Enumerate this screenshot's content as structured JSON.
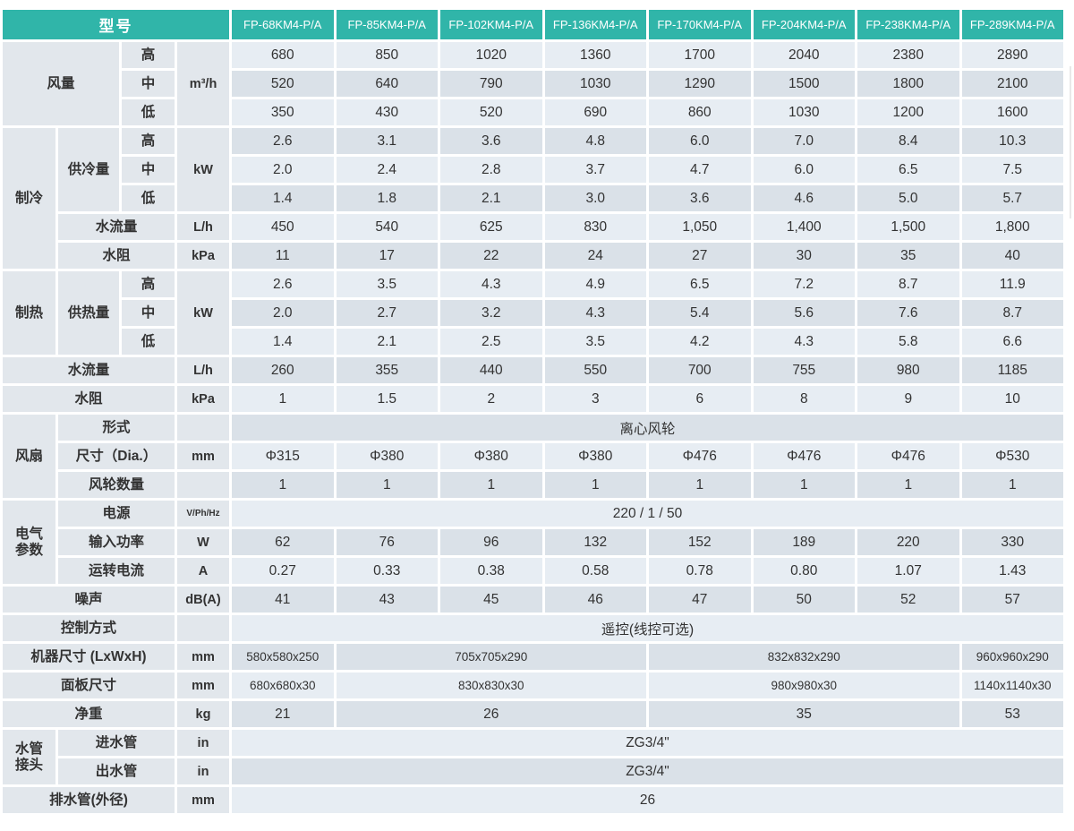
{
  "colors": {
    "header_teal": "#30b5a9",
    "row_light": "#e7edf3",
    "row_dark": "#dae1e8",
    "label_bg": "#e2e7ec",
    "text": "#333333"
  },
  "table": {
    "header": {
      "model_label": "型号",
      "models": [
        "FP-68KM4-P/A",
        "FP-85KM4-P/A",
        "FP-102KM4-P/A",
        "FP-136KM4-P/A",
        "FP-170KM4-P/A",
        "FP-204KM4-P/A",
        "FP-238KM4-P/A",
        "FP-289KM4-P/A"
      ]
    },
    "body": [
      {
        "cells": [
          {
            "t": "风量",
            "k": "lab",
            "cs": 2,
            "rs": 3,
            "n": "section-airflow"
          },
          {
            "t": "高",
            "k": "lab"
          },
          {
            "t": "m³/h",
            "k": "unit",
            "rs": 3
          },
          {
            "t": "680",
            "k": "val"
          },
          {
            "t": "850",
            "k": "val"
          },
          {
            "t": "1020",
            "k": "val"
          },
          {
            "t": "1360",
            "k": "val"
          },
          {
            "t": "1700",
            "k": "val"
          },
          {
            "t": "2040",
            "k": "val"
          },
          {
            "t": "2380",
            "k": "val"
          },
          {
            "t": "2890",
            "k": "val"
          }
        ]
      },
      {
        "cells": [
          {
            "t": "中",
            "k": "lab"
          },
          {
            "t": "520",
            "k": "val"
          },
          {
            "t": "640",
            "k": "val"
          },
          {
            "t": "790",
            "k": "val"
          },
          {
            "t": "1030",
            "k": "val"
          },
          {
            "t": "1290",
            "k": "val"
          },
          {
            "t": "1500",
            "k": "val"
          },
          {
            "t": "1800",
            "k": "val"
          },
          {
            "t": "2100",
            "k": "val"
          }
        ]
      },
      {
        "cells": [
          {
            "t": "低",
            "k": "lab"
          },
          {
            "t": "350",
            "k": "val"
          },
          {
            "t": "430",
            "k": "val"
          },
          {
            "t": "520",
            "k": "val"
          },
          {
            "t": "690",
            "k": "val"
          },
          {
            "t": "860",
            "k": "val"
          },
          {
            "t": "1030",
            "k": "val"
          },
          {
            "t": "1200",
            "k": "val"
          },
          {
            "t": "1600",
            "k": "val"
          }
        ]
      },
      {
        "cells": [
          {
            "t": "制冷",
            "k": "lab",
            "rs": 5,
            "n": "section-cooling"
          },
          {
            "t": "供冷量",
            "k": "lab",
            "rs": 3
          },
          {
            "t": "高",
            "k": "lab"
          },
          {
            "t": "kW",
            "k": "unit",
            "rs": 3
          },
          {
            "t": "2.6",
            "k": "val"
          },
          {
            "t": "3.1",
            "k": "val"
          },
          {
            "t": "3.6",
            "k": "val"
          },
          {
            "t": "4.8",
            "k": "val"
          },
          {
            "t": "6.0",
            "k": "val"
          },
          {
            "t": "7.0",
            "k": "val"
          },
          {
            "t": "8.4",
            "k": "val"
          },
          {
            "t": "10.3",
            "k": "val"
          }
        ]
      },
      {
        "cells": [
          {
            "t": "中",
            "k": "lab"
          },
          {
            "t": "2.0",
            "k": "val"
          },
          {
            "t": "2.4",
            "k": "val"
          },
          {
            "t": "2.8",
            "k": "val"
          },
          {
            "t": "3.7",
            "k": "val"
          },
          {
            "t": "4.7",
            "k": "val"
          },
          {
            "t": "6.0",
            "k": "val"
          },
          {
            "t": "6.5",
            "k": "val"
          },
          {
            "t": "7.5",
            "k": "val"
          }
        ]
      },
      {
        "cells": [
          {
            "t": "低",
            "k": "lab"
          },
          {
            "t": "1.4",
            "k": "val"
          },
          {
            "t": "1.8",
            "k": "val"
          },
          {
            "t": "2.1",
            "k": "val"
          },
          {
            "t": "3.0",
            "k": "val"
          },
          {
            "t": "3.6",
            "k": "val"
          },
          {
            "t": "4.6",
            "k": "val"
          },
          {
            "t": "5.0",
            "k": "val"
          },
          {
            "t": "5.7",
            "k": "val"
          }
        ]
      },
      {
        "cells": [
          {
            "t": "水流量",
            "k": "lab",
            "cs": 2
          },
          {
            "t": "L/h",
            "k": "unit"
          },
          {
            "t": "450",
            "k": "val"
          },
          {
            "t": "540",
            "k": "val"
          },
          {
            "t": "625",
            "k": "val"
          },
          {
            "t": "830",
            "k": "val"
          },
          {
            "t": "1,050",
            "k": "val"
          },
          {
            "t": "1,400",
            "k": "val"
          },
          {
            "t": "1,500",
            "k": "val"
          },
          {
            "t": "1,800",
            "k": "val"
          }
        ]
      },
      {
        "cells": [
          {
            "t": "水阻",
            "k": "lab",
            "cs": 2
          },
          {
            "t": "kPa",
            "k": "unit"
          },
          {
            "t": "11",
            "k": "val"
          },
          {
            "t": "17",
            "k": "val"
          },
          {
            "t": "22",
            "k": "val"
          },
          {
            "t": "24",
            "k": "val"
          },
          {
            "t": "27",
            "k": "val"
          },
          {
            "t": "30",
            "k": "val"
          },
          {
            "t": "35",
            "k": "val"
          },
          {
            "t": "40",
            "k": "val"
          }
        ]
      },
      {
        "cells": [
          {
            "t": "制热",
            "k": "lab",
            "rs": 3,
            "n": "section-heating"
          },
          {
            "t": "供热量",
            "k": "lab",
            "rs": 3
          },
          {
            "t": "高",
            "k": "lab"
          },
          {
            "t": "kW",
            "k": "unit",
            "rs": 3
          },
          {
            "t": "2.6",
            "k": "val"
          },
          {
            "t": "3.5",
            "k": "val"
          },
          {
            "t": "4.3",
            "k": "val"
          },
          {
            "t": "4.9",
            "k": "val"
          },
          {
            "t": "6.5",
            "k": "val"
          },
          {
            "t": "7.2",
            "k": "val"
          },
          {
            "t": "8.7",
            "k": "val"
          },
          {
            "t": "11.9",
            "k": "val"
          }
        ]
      },
      {
        "cells": [
          {
            "t": "中",
            "k": "lab"
          },
          {
            "t": "2.0",
            "k": "val"
          },
          {
            "t": "2.7",
            "k": "val"
          },
          {
            "t": "3.2",
            "k": "val"
          },
          {
            "t": "4.3",
            "k": "val"
          },
          {
            "t": "5.4",
            "k": "val"
          },
          {
            "t": "5.6",
            "k": "val"
          },
          {
            "t": "7.6",
            "k": "val"
          },
          {
            "t": "8.7",
            "k": "val"
          }
        ]
      },
      {
        "cells": [
          {
            "t": "低",
            "k": "lab"
          },
          {
            "t": "1.4",
            "k": "val"
          },
          {
            "t": "2.1",
            "k": "val"
          },
          {
            "t": "2.5",
            "k": "val"
          },
          {
            "t": "3.5",
            "k": "val"
          },
          {
            "t": "4.2",
            "k": "val"
          },
          {
            "t": "4.3",
            "k": "val"
          },
          {
            "t": "5.8",
            "k": "val"
          },
          {
            "t": "6.6",
            "k": "val"
          }
        ]
      },
      {
        "cells": [
          {
            "t": "水流量",
            "k": "lab",
            "cs": 3
          },
          {
            "t": "L/h",
            "k": "unit"
          },
          {
            "t": "260",
            "k": "val"
          },
          {
            "t": "355",
            "k": "val"
          },
          {
            "t": "440",
            "k": "val"
          },
          {
            "t": "550",
            "k": "val"
          },
          {
            "t": "700",
            "k": "val"
          },
          {
            "t": "755",
            "k": "val"
          },
          {
            "t": "980",
            "k": "val"
          },
          {
            "t": "1185",
            "k": "val"
          }
        ]
      },
      {
        "cells": [
          {
            "t": "水阻",
            "k": "lab",
            "cs": 3
          },
          {
            "t": "kPa",
            "k": "unit"
          },
          {
            "t": "1",
            "k": "val"
          },
          {
            "t": "1.5",
            "k": "val"
          },
          {
            "t": "2",
            "k": "val"
          },
          {
            "t": "3",
            "k": "val"
          },
          {
            "t": "6",
            "k": "val"
          },
          {
            "t": "8",
            "k": "val"
          },
          {
            "t": "9",
            "k": "val"
          },
          {
            "t": "10",
            "k": "val"
          }
        ]
      },
      {
        "cells": [
          {
            "t": "风扇",
            "k": "lab",
            "rs": 3,
            "n": "section-fan"
          },
          {
            "t": "形式",
            "k": "lab",
            "cs": 2
          },
          {
            "t": "",
            "k": "unit"
          },
          {
            "t": "离心风轮",
            "k": "val",
            "cs": 8
          }
        ]
      },
      {
        "cells": [
          {
            "t": "尺寸（Dia.）",
            "k": "lab",
            "cs": 2
          },
          {
            "t": "mm",
            "k": "unit"
          },
          {
            "t": "Φ315",
            "k": "val"
          },
          {
            "t": "Φ380",
            "k": "val"
          },
          {
            "t": "Φ380",
            "k": "val"
          },
          {
            "t": "Φ380",
            "k": "val"
          },
          {
            "t": "Φ476",
            "k": "val"
          },
          {
            "t": "Φ476",
            "k": "val"
          },
          {
            "t": "Φ476",
            "k": "val"
          },
          {
            "t": "Φ530",
            "k": "val"
          }
        ]
      },
      {
        "cells": [
          {
            "t": "风轮数量",
            "k": "lab",
            "cs": 2
          },
          {
            "t": "",
            "k": "unit"
          },
          {
            "t": "1",
            "k": "val"
          },
          {
            "t": "1",
            "k": "val"
          },
          {
            "t": "1",
            "k": "val"
          },
          {
            "t": "1",
            "k": "val"
          },
          {
            "t": "1",
            "k": "val"
          },
          {
            "t": "1",
            "k": "val"
          },
          {
            "t": "1",
            "k": "val"
          },
          {
            "t": "1",
            "k": "val"
          }
        ]
      },
      {
        "cells": [
          {
            "t": "电气\n参数",
            "k": "lab",
            "rs": 3,
            "n": "section-electrical"
          },
          {
            "t": "电源",
            "k": "lab",
            "cs": 2
          },
          {
            "t": "V/Ph/Hz",
            "k": "unit",
            "cls": "small"
          },
          {
            "t": "220 / 1 / 50",
            "k": "val",
            "cs": 8
          }
        ]
      },
      {
        "cells": [
          {
            "t": "输入功率",
            "k": "lab",
            "cs": 2
          },
          {
            "t": "W",
            "k": "unit"
          },
          {
            "t": "62",
            "k": "val"
          },
          {
            "t": "76",
            "k": "val"
          },
          {
            "t": "96",
            "k": "val"
          },
          {
            "t": "132",
            "k": "val"
          },
          {
            "t": "152",
            "k": "val"
          },
          {
            "t": "189",
            "k": "val"
          },
          {
            "t": "220",
            "k": "val"
          },
          {
            "t": "330",
            "k": "val"
          }
        ]
      },
      {
        "cells": [
          {
            "t": "运转电流",
            "k": "lab",
            "cs": 2
          },
          {
            "t": "A",
            "k": "unit"
          },
          {
            "t": "0.27",
            "k": "val"
          },
          {
            "t": "0.33",
            "k": "val"
          },
          {
            "t": "0.38",
            "k": "val"
          },
          {
            "t": "0.58",
            "k": "val"
          },
          {
            "t": "0.78",
            "k": "val"
          },
          {
            "t": "0.80",
            "k": "val"
          },
          {
            "t": "1.07",
            "k": "val"
          },
          {
            "t": "1.43",
            "k": "val"
          }
        ]
      },
      {
        "cells": [
          {
            "t": "噪声",
            "k": "lab",
            "cs": 3
          },
          {
            "t": "dB(A)",
            "k": "unit"
          },
          {
            "t": "41",
            "k": "val"
          },
          {
            "t": "43",
            "k": "val"
          },
          {
            "t": "45",
            "k": "val"
          },
          {
            "t": "46",
            "k": "val"
          },
          {
            "t": "47",
            "k": "val"
          },
          {
            "t": "50",
            "k": "val"
          },
          {
            "t": "52",
            "k": "val"
          },
          {
            "t": "57",
            "k": "val"
          }
        ]
      },
      {
        "cells": [
          {
            "t": "控制方式",
            "k": "lab",
            "cs": 3
          },
          {
            "t": "",
            "k": "unit"
          },
          {
            "t": "遥控(线控可选)",
            "k": "val",
            "cs": 8
          }
        ]
      },
      {
        "cells": [
          {
            "t": "机器尺寸 (LxWxH)",
            "k": "lab",
            "cs": 3
          },
          {
            "t": "mm",
            "k": "unit"
          },
          {
            "t": "580x580x250",
            "k": "val",
            "cls": "sm"
          },
          {
            "t": "705x705x290",
            "k": "val",
            "cs": 3,
            "cls": "sm"
          },
          {
            "t": "832x832x290",
            "k": "val",
            "cs": 3,
            "cls": "sm"
          },
          {
            "t": "960x960x290",
            "k": "val",
            "cls": "sm"
          }
        ]
      },
      {
        "cells": [
          {
            "t": "面板尺寸",
            "k": "lab",
            "cs": 3
          },
          {
            "t": "mm",
            "k": "unit"
          },
          {
            "t": "680x680x30",
            "k": "val",
            "cls": "sm"
          },
          {
            "t": "830x830x30",
            "k": "val",
            "cs": 3,
            "cls": "sm"
          },
          {
            "t": "980x980x30",
            "k": "val",
            "cs": 3,
            "cls": "sm"
          },
          {
            "t": "1140x1140x30",
            "k": "val",
            "cls": "sm"
          }
        ]
      },
      {
        "cells": [
          {
            "t": "净重",
            "k": "lab",
            "cs": 3
          },
          {
            "t": "kg",
            "k": "unit"
          },
          {
            "t": "21",
            "k": "val"
          },
          {
            "t": "26",
            "k": "val",
            "cs": 3
          },
          {
            "t": "35",
            "k": "val",
            "cs": 3
          },
          {
            "t": "53",
            "k": "val"
          }
        ]
      },
      {
        "cells": [
          {
            "t": "水管\n接头",
            "k": "lab",
            "rs": 2,
            "n": "section-pipe-joints"
          },
          {
            "t": "进水管",
            "k": "lab",
            "cs": 2
          },
          {
            "t": "in",
            "k": "unit"
          },
          {
            "t": "ZG3/4\"",
            "k": "val",
            "cs": 8
          }
        ]
      },
      {
        "cells": [
          {
            "t": "出水管",
            "k": "lab",
            "cs": 2
          },
          {
            "t": "in",
            "k": "unit"
          },
          {
            "t": "ZG3/4\"",
            "k": "val",
            "cs": 8
          }
        ]
      },
      {
        "cells": [
          {
            "t": "排水管(外径)",
            "k": "lab",
            "cs": 3
          },
          {
            "t": "mm",
            "k": "unit"
          },
          {
            "t": "26",
            "k": "val",
            "cs": 8
          }
        ]
      }
    ]
  }
}
